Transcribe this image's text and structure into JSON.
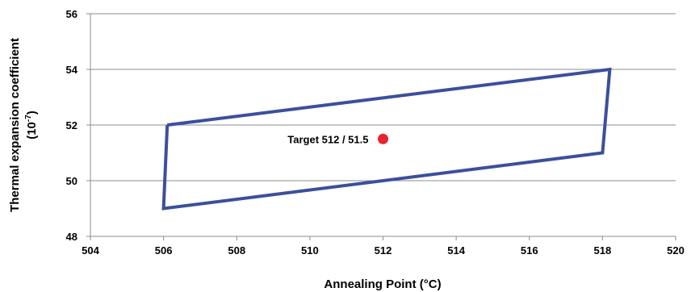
{
  "chart_data": {
    "type": "line",
    "title": "",
    "xlabel": "Annealing Point (°C)",
    "ylabel_line1": "Thermal expansion coefficient",
    "ylabel_line2_base": "(10",
    "ylabel_line2_exp": "-7",
    "ylabel_line2_close": ")",
    "xlim": [
      504,
      520
    ],
    "ylim": [
      48,
      56
    ],
    "x_ticks": [
      504,
      506,
      508,
      510,
      512,
      514,
      516,
      518,
      520
    ],
    "y_ticks": [
      48,
      50,
      52,
      54,
      56
    ],
    "grid": "horizontal",
    "legend": "none",
    "series": [
      {
        "x": [
          506.1,
          518.2,
          518.0,
          506.0,
          506.1
        ],
        "y": [
          52.0,
          54.0,
          51.0,
          49.0,
          52.0
        ],
        "color": "#3c4f9c"
      }
    ],
    "annotations": [
      {
        "x": 512.0,
        "y": 51.5,
        "label": "Target 512 / 51.5",
        "color": "#e8232a"
      }
    ]
  }
}
